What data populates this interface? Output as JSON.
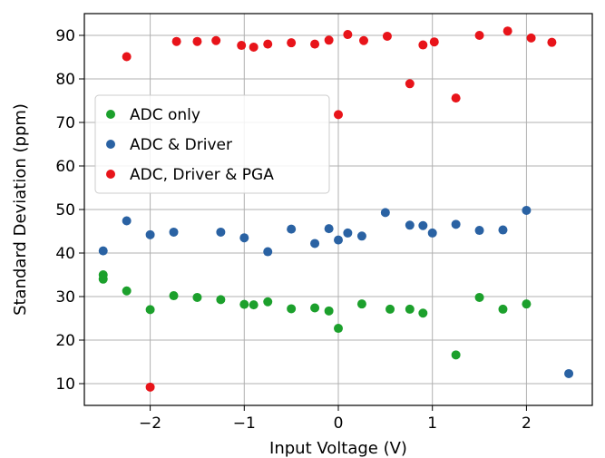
{
  "chart_data": {
    "type": "scatter",
    "title": "",
    "xlabel": "Input Voltage (V)",
    "ylabel": "Standard Deviation (ppm)",
    "xlim": [
      -2.7,
      2.7
    ],
    "ylim": [
      5,
      95
    ],
    "xticks": [
      -2,
      -1,
      0,
      1,
      2
    ],
    "xtick_labels": [
      "−2",
      "−1",
      "0",
      "1",
      "2"
    ],
    "yticks": [
      10,
      20,
      30,
      40,
      50,
      60,
      70,
      80,
      90
    ],
    "ytick_labels": [
      "10",
      "20",
      "30",
      "40",
      "50",
      "60",
      "70",
      "80",
      "90"
    ],
    "grid": true,
    "legend_position": "center-left",
    "series": [
      {
        "name": "ADC only",
        "color": "#1ca02c",
        "points": [
          [
            -2.5,
            35
          ],
          [
            -2.5,
            34
          ],
          [
            -2.25,
            31.3
          ],
          [
            -2.0,
            27
          ],
          [
            -1.75,
            30.2
          ],
          [
            -1.5,
            29.8
          ],
          [
            -1.25,
            29.3
          ],
          [
            -1.0,
            28.2
          ],
          [
            -0.9,
            28.1
          ],
          [
            -0.75,
            28.8
          ],
          [
            -0.5,
            27.2
          ],
          [
            -0.25,
            27.4
          ],
          [
            -0.1,
            26.7
          ],
          [
            0.0,
            22.7
          ],
          [
            0.25,
            28.3
          ],
          [
            0.55,
            27.1
          ],
          [
            0.76,
            27.1
          ],
          [
            0.9,
            26.2
          ],
          [
            1.25,
            16.6
          ],
          [
            1.5,
            29.8
          ],
          [
            1.75,
            27.1
          ],
          [
            2.0,
            28.3
          ]
        ]
      },
      {
        "name": "ADC & Driver",
        "color": "#2a62a3",
        "points": [
          [
            -2.5,
            40.5
          ],
          [
            -2.25,
            47.4
          ],
          [
            -2.0,
            44.2
          ],
          [
            -1.75,
            44.8
          ],
          [
            -1.25,
            44.8
          ],
          [
            -1.0,
            43.5
          ],
          [
            -0.75,
            40.3
          ],
          [
            -0.5,
            45.5
          ],
          [
            -0.25,
            42.2
          ],
          [
            -0.1,
            45.6
          ],
          [
            0.0,
            43.0
          ],
          [
            0.1,
            44.6
          ],
          [
            0.25,
            43.9
          ],
          [
            0.5,
            49.3
          ],
          [
            0.76,
            46.4
          ],
          [
            0.9,
            46.3
          ],
          [
            1.0,
            44.6
          ],
          [
            1.25,
            46.6
          ],
          [
            1.5,
            45.2
          ],
          [
            1.75,
            45.3
          ],
          [
            2.0,
            49.8
          ],
          [
            2.45,
            12.3
          ]
        ]
      },
      {
        "name": "ADC, Driver & PGA",
        "color": "#e8141a",
        "points": [
          [
            -2.25,
            85.1
          ],
          [
            -2.0,
            9.2
          ],
          [
            -1.72,
            88.6
          ],
          [
            -1.5,
            88.6
          ],
          [
            -1.3,
            88.8
          ],
          [
            -1.03,
            87.7
          ],
          [
            -0.9,
            87.3
          ],
          [
            -0.75,
            88.0
          ],
          [
            -0.5,
            88.3
          ],
          [
            -0.25,
            88.0
          ],
          [
            -0.1,
            88.9
          ],
          [
            0.0,
            71.8
          ],
          [
            0.1,
            90.2
          ],
          [
            0.27,
            88.8
          ],
          [
            0.52,
            89.8
          ],
          [
            0.76,
            78.9
          ],
          [
            0.9,
            87.8
          ],
          [
            1.02,
            88.5
          ],
          [
            1.25,
            75.6
          ],
          [
            1.5,
            90.0
          ],
          [
            1.8,
            91.0
          ],
          [
            2.05,
            89.4
          ],
          [
            2.27,
            88.4
          ]
        ]
      }
    ]
  }
}
